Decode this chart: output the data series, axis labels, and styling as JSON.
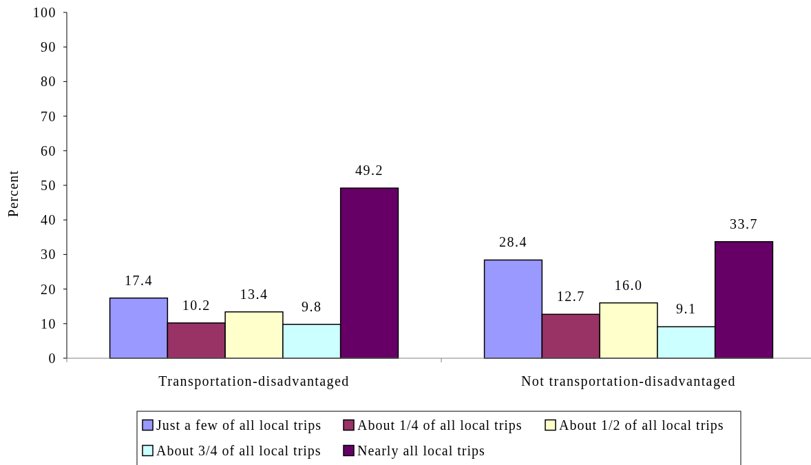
{
  "chart_data": {
    "type": "bar",
    "ylabel": "Percent",
    "categories": [
      "Transportation-disadvantaged",
      "Not transportation-disadvantaged"
    ],
    "series": [
      {
        "name": "Just a few of all local trips",
        "color": "#9999ff",
        "values": [
          17.4,
          28.4
        ],
        "value_labels": [
          "17.4",
          "28.4"
        ]
      },
      {
        "name": "About 1/4 of all local trips",
        "color": "#993366",
        "values": [
          10.2,
          12.7
        ],
        "value_labels": [
          "10.2",
          "12.7"
        ]
      },
      {
        "name": "About 1/2 of all local trips",
        "color": "#ffffcc",
        "values": [
          13.4,
          16.0
        ],
        "value_labels": [
          "13.4",
          "16.0"
        ]
      },
      {
        "name": "About 3/4 of all local trips",
        "color": "#ccffff",
        "values": [
          9.8,
          9.1
        ],
        "value_labels": [
          "9.8",
          "9.1"
        ]
      },
      {
        "name": "Nearly all local trips",
        "color": "#660066",
        "values": [
          49.2,
          33.7
        ],
        "value_labels": [
          "49.2",
          "33.7"
        ]
      }
    ],
    "ylim": [
      0,
      100
    ],
    "yticks": [
      0,
      10,
      20,
      30,
      40,
      50,
      60,
      70,
      80,
      90,
      100
    ],
    "legend": "bottom"
  }
}
